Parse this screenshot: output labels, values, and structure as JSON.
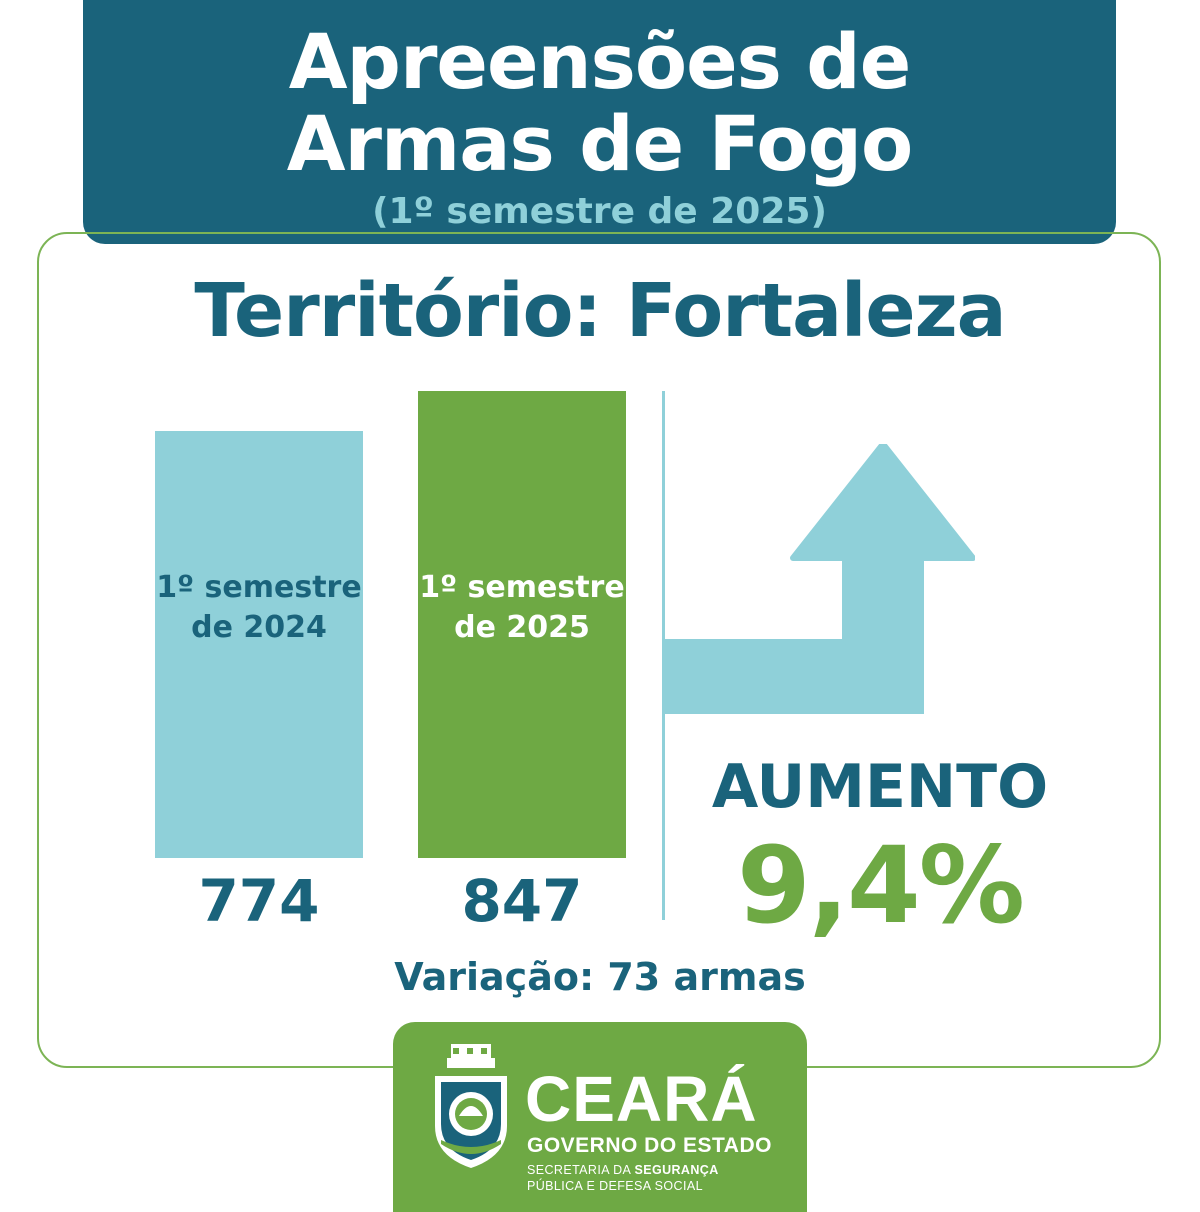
{
  "header": {
    "title_line1": "Apreensões de",
    "title_line2": "Armas de Fogo",
    "subtitle": "(1º semestre de 2025)"
  },
  "territory": "Território: Fortaleza",
  "chart_data": {
    "type": "bar",
    "categories": [
      "1º semestre de 2024",
      "1º semestre de 2025"
    ],
    "category_lines": [
      [
        "1º semestre",
        "de 2024"
      ],
      [
        "1º semestre",
        "de 2025"
      ]
    ],
    "values": [
      774,
      847
    ],
    "value_labels": [
      "774",
      "847"
    ],
    "bar_colors": [
      "#8fd0d9",
      "#6ea944"
    ],
    "label_colors": [
      "#1a637b",
      "#ffffff"
    ],
    "ylim": [
      0,
      847
    ],
    "title": "",
    "xlabel": "",
    "ylabel": "",
    "grid": false
  },
  "trend": {
    "direction": "up",
    "label": "AUMENTO",
    "percent": "9,4%"
  },
  "variation": "Variação: 73 armas",
  "footer": {
    "brand": "CEARÁ",
    "government": "GOVERNO DO ESTADO",
    "secretariat_line1_a": "SECRETARIA DA ",
    "secretariat_line1_b": "SEGURANÇA",
    "secretariat_line2": "PÚBLICA E DEFESA SOCIAL"
  },
  "colors": {
    "primary": "#1a637b",
    "light_blue": "#8fd0d9",
    "green": "#6ea944",
    "border": "#7cb455"
  }
}
